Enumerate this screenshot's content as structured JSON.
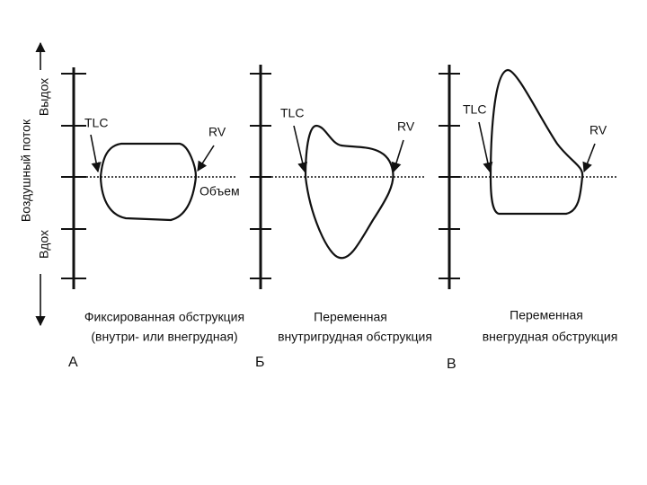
{
  "axis": {
    "label": "Воздушный поток",
    "expiration": "Выдох",
    "inspiration": "Вдох"
  },
  "panels": [
    {
      "letter": "А",
      "tlc": "TLC",
      "rv": "RV",
      "volume": "Объем",
      "caption": [
        "Фиксированная обструкция",
        "(внутри- или внегрудная)"
      ]
    },
    {
      "letter": "Б",
      "tlc": "TLC",
      "rv": "RV",
      "caption": [
        "Переменная",
        "внутригрудная обструкция"
      ]
    },
    {
      "letter": "В",
      "tlc": "TLC",
      "rv": "RV",
      "caption": [
        "Переменная",
        "внегрудная обструкция"
      ]
    }
  ]
}
